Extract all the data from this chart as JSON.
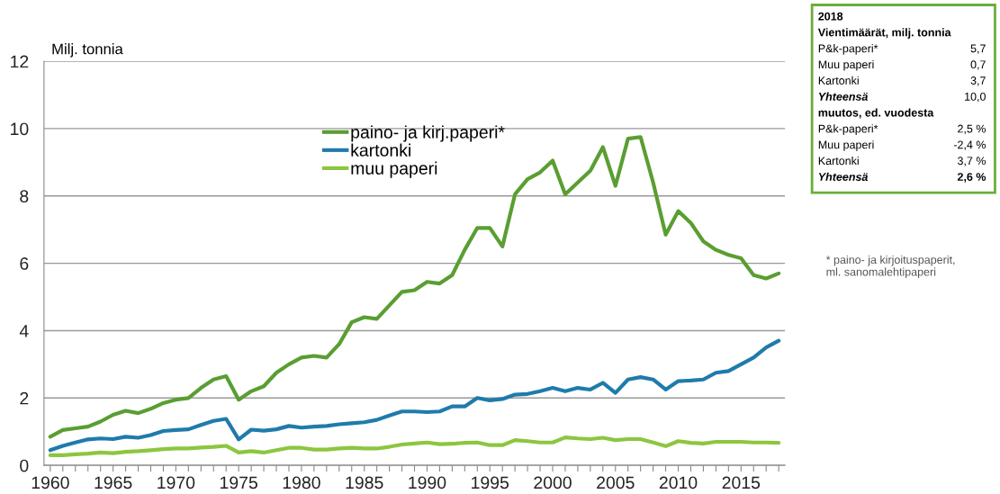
{
  "chart_data": {
    "type": "line",
    "ylabel": "Milj. tonnia",
    "x": [
      1960,
      1961,
      1962,
      1963,
      1964,
      1965,
      1966,
      1967,
      1968,
      1969,
      1970,
      1971,
      1972,
      1973,
      1974,
      1975,
      1976,
      1977,
      1978,
      1979,
      1980,
      1981,
      1982,
      1983,
      1984,
      1985,
      1986,
      1987,
      1988,
      1989,
      1990,
      1991,
      1992,
      1993,
      1994,
      1995,
      1996,
      1997,
      1998,
      1999,
      2000,
      2001,
      2002,
      2003,
      2004,
      2005,
      2006,
      2007,
      2008,
      2009,
      2010,
      2011,
      2012,
      2013,
      2014,
      2015,
      2016,
      2017,
      2018
    ],
    "series": [
      {
        "name": "paino- ja kirj.paperi*",
        "color": "#5a9e32",
        "values": [
          0.85,
          1.05,
          1.1,
          1.15,
          1.3,
          1.5,
          1.62,
          1.55,
          1.68,
          1.85,
          1.95,
          2.0,
          2.3,
          2.55,
          2.65,
          1.95,
          2.2,
          2.35,
          2.75,
          3.0,
          3.2,
          3.25,
          3.2,
          3.6,
          4.25,
          4.4,
          4.35,
          4.75,
          5.15,
          5.2,
          5.45,
          5.4,
          5.65,
          6.4,
          7.05,
          7.05,
          6.5,
          8.05,
          8.5,
          8.7,
          9.05,
          8.05,
          8.4,
          8.75,
          9.45,
          8.3,
          9.7,
          9.75,
          8.4,
          6.85,
          7.55,
          7.2,
          6.65,
          6.4,
          6.25,
          6.15,
          5.65,
          5.55,
          5.7
        ]
      },
      {
        "name": "kartonki",
        "color": "#1f7bab",
        "values": [
          0.45,
          0.58,
          0.68,
          0.77,
          0.8,
          0.78,
          0.85,
          0.82,
          0.9,
          1.02,
          1.05,
          1.07,
          1.2,
          1.32,
          1.38,
          0.77,
          1.06,
          1.03,
          1.07,
          1.17,
          1.12,
          1.15,
          1.17,
          1.22,
          1.25,
          1.28,
          1.35,
          1.48,
          1.6,
          1.6,
          1.58,
          1.6,
          1.75,
          1.75,
          2.0,
          1.93,
          1.97,
          2.1,
          2.12,
          2.2,
          2.3,
          2.2,
          2.3,
          2.25,
          2.45,
          2.15,
          2.55,
          2.62,
          2.55,
          2.25,
          2.5,
          2.52,
          2.55,
          2.75,
          2.8,
          3.0,
          3.2,
          3.5,
          3.7
        ]
      },
      {
        "name": "muu paperi",
        "color": "#8cc63f",
        "values": [
          0.3,
          0.3,
          0.33,
          0.35,
          0.38,
          0.36,
          0.4,
          0.42,
          0.45,
          0.48,
          0.5,
          0.5,
          0.53,
          0.55,
          0.58,
          0.38,
          0.42,
          0.38,
          0.45,
          0.52,
          0.52,
          0.47,
          0.47,
          0.5,
          0.52,
          0.5,
          0.5,
          0.55,
          0.62,
          0.65,
          0.68,
          0.63,
          0.64,
          0.67,
          0.68,
          0.6,
          0.6,
          0.75,
          0.72,
          0.68,
          0.68,
          0.83,
          0.8,
          0.78,
          0.82,
          0.75,
          0.78,
          0.78,
          0.68,
          0.57,
          0.72,
          0.67,
          0.65,
          0.7,
          0.7,
          0.7,
          0.68,
          0.68,
          0.67
        ]
      }
    ],
    "xlim": [
      1959.5,
      2018.5
    ],
    "xticks": [
      1960,
      {
        "value": 1961,
        "label": null
      },
      {
        "value": 1962,
        "label": null
      },
      {
        "value": 1963,
        "label": null
      },
      {
        "value": 1964,
        "label": null
      },
      1965,
      {
        "value": 1966,
        "label": null
      },
      {
        "value": 1967,
        "label": null
      },
      {
        "value": 1968,
        "label": null
      },
      {
        "value": 1969,
        "label": null
      },
      1970,
      {
        "value": 1971,
        "label": null
      },
      {
        "value": 1972,
        "label": null
      },
      {
        "value": 1973,
        "label": null
      },
      {
        "value": 1974,
        "label": null
      },
      1975,
      {
        "value": 1976,
        "label": null
      },
      {
        "value": 1977,
        "label": null
      },
      {
        "value": 1978,
        "label": null
      },
      {
        "value": 1979,
        "label": null
      },
      1980,
      {
        "value": 1981,
        "label": null
      },
      {
        "value": 1982,
        "label": null
      },
      {
        "value": 1983,
        "label": null
      },
      {
        "value": 1984,
        "label": null
      },
      1985,
      {
        "value": 1986,
        "label": null
      },
      {
        "value": 1987,
        "label": null
      },
      {
        "value": 1988,
        "label": null
      },
      {
        "value": 1989,
        "label": null
      },
      1990,
      {
        "value": 1991,
        "label": null
      },
      {
        "value": 1992,
        "label": null
      },
      {
        "value": 1993,
        "label": null
      },
      {
        "value": 1994,
        "label": null
      },
      1995,
      {
        "value": 1996,
        "label": null
      },
      {
        "value": 1997,
        "label": null
      },
      {
        "value": 1998,
        "label": null
      },
      {
        "value": 1999,
        "label": null
      },
      2000,
      {
        "value": 2001,
        "label": null
      },
      {
        "value": 2002,
        "label": null
      },
      {
        "value": 2003,
        "label": null
      },
      {
        "value": 2004,
        "label": null
      },
      2005,
      {
        "value": 2006,
        "label": null
      },
      {
        "value": 2007,
        "label": null
      },
      {
        "value": 2008,
        "label": null
      },
      {
        "value": 2009,
        "label": null
      },
      2010,
      {
        "value": 2011,
        "label": null
      },
      {
        "value": 2012,
        "label": null
      },
      {
        "value": 2013,
        "label": null
      },
      {
        "value": 2014,
        "label": null
      },
      2015,
      {
        "value": 2016,
        "label": null
      },
      {
        "value": 2017,
        "label": null
      },
      {
        "value": 2018,
        "label": null
      }
    ],
    "ylim": [
      0,
      12
    ],
    "yticks": [
      0,
      2,
      4,
      6,
      8,
      10,
      12
    ],
    "grid": "y",
    "legend": "top",
    "line_style": "solid",
    "annotations": [
      "2018",
      "Vientimäärät, milj. tonnia",
      "P&k-paperi*",
      "5,7",
      "Muu paperi",
      "0,7",
      "Kartonki",
      "3,7",
      "Yhteensä",
      "10,0",
      "muutos, ed. vuodesta",
      "P&k-paperi*",
      "2,5 %",
      "Muu paperi",
      "-2,4 %",
      "Kartonki",
      "3,7 %",
      "Yhteensä",
      "2,6 %",
      "* paino- ja kirjoituspaperit,\nml. sanomalehtipaperi"
    ]
  }
}
